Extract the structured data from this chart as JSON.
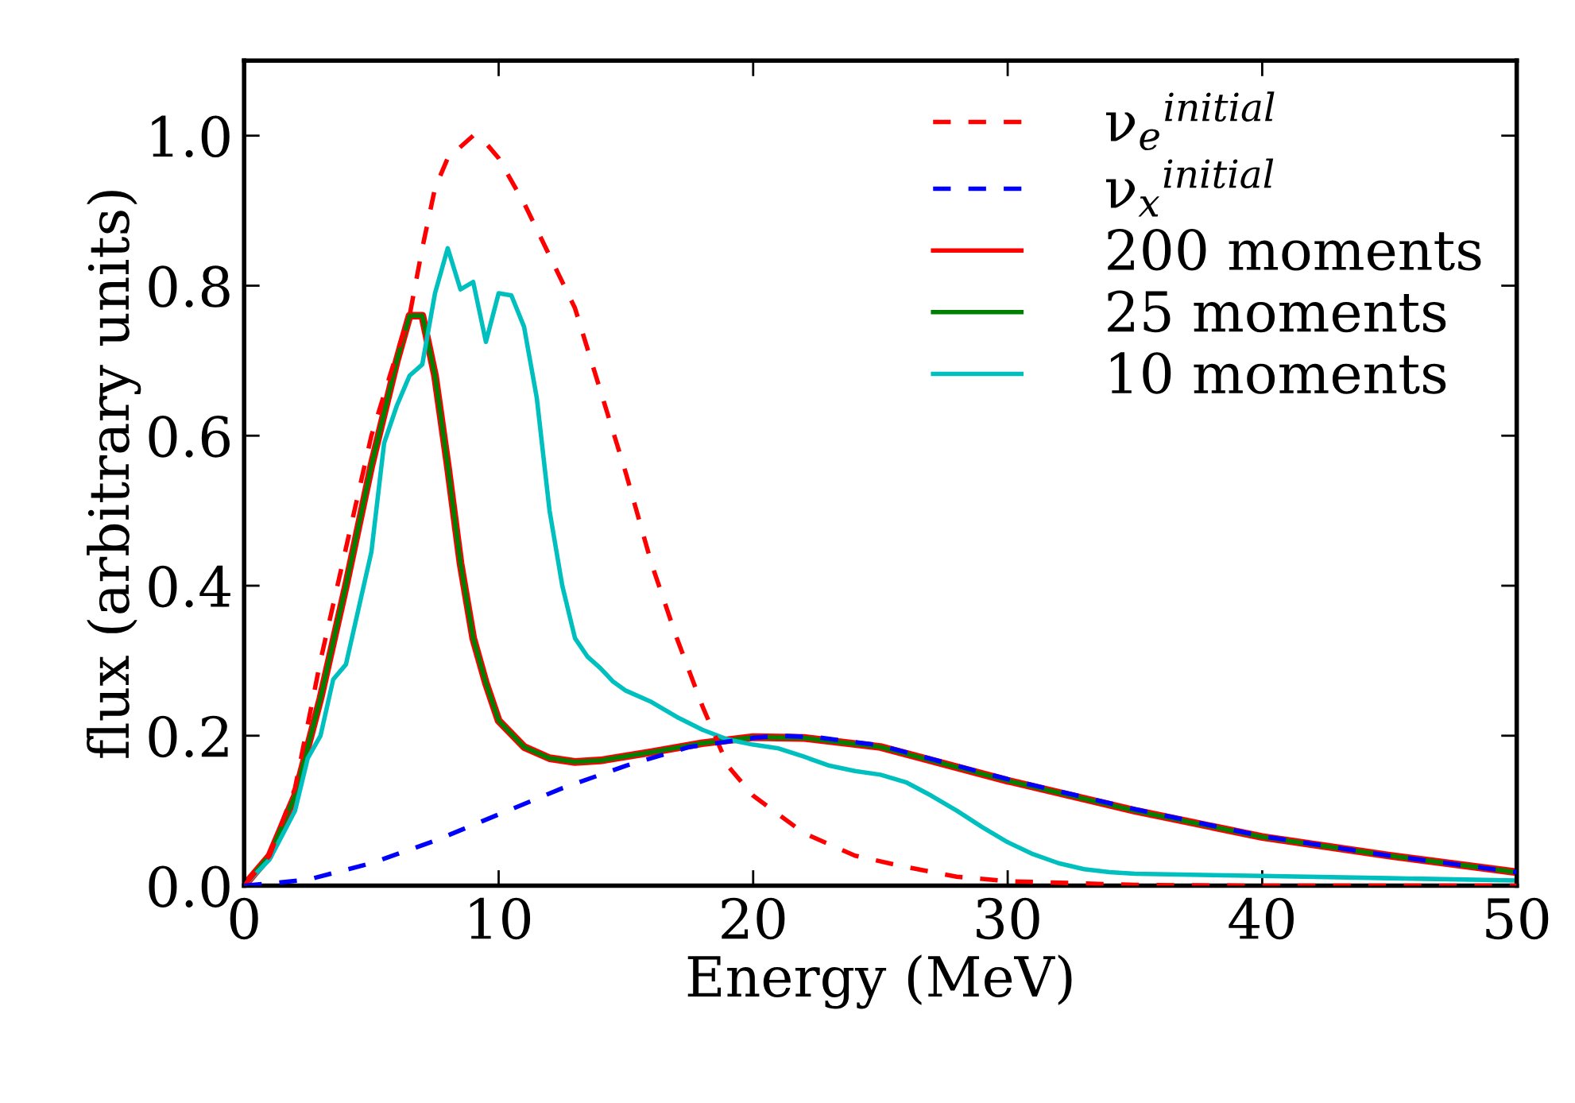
{
  "chart_data": {
    "type": "line",
    "xlabel": "Energy (MeV)",
    "ylabel": "flux (arbitrary units)",
    "xlim": [
      0,
      50
    ],
    "xticks": [
      0,
      10,
      20,
      30,
      40,
      50
    ],
    "ylim": [
      0,
      1.1
    ],
    "yticks": [
      {
        "value": 0,
        "label": "0.0"
      },
      {
        "value": 0.2,
        "label": "0.2"
      },
      {
        "value": 0.4,
        "label": "0.4"
      },
      {
        "value": 0.6,
        "label": "0.6"
      },
      {
        "value": 0.8,
        "label": "0.8"
      },
      {
        "value": 1.0,
        "label": "1.0"
      }
    ],
    "grid": false,
    "legend": "top right",
    "marker": "none",
    "series": [
      {
        "name": "ν$_{e}$$^{initial}$",
        "color": "#ff0000",
        "line_style": "dashed",
        "x": [
          0,
          1,
          2,
          3,
          4,
          5,
          6,
          6.5,
          7,
          7.5,
          8,
          9,
          9.5,
          10,
          11,
          12,
          13,
          14,
          15,
          16,
          17,
          18,
          19,
          20,
          22,
          24,
          26,
          28,
          30,
          35,
          40,
          50
        ],
        "values": [
          0,
          0.04,
          0.13,
          0.3,
          0.45,
          0.6,
          0.71,
          0.76,
          0.85,
          0.93,
          0.97,
          1.0,
          0.99,
          0.97,
          0.91,
          0.84,
          0.77,
          0.66,
          0.55,
          0.43,
          0.33,
          0.24,
          0.16,
          0.12,
          0.07,
          0.04,
          0.025,
          0.012,
          0.006,
          0.001,
          0,
          0
        ]
      },
      {
        "name": "ν$_{x}$$^{initial}$",
        "color": "#0000ff",
        "line_style": "dashed",
        "x": [
          0,
          2.5,
          5,
          7.5,
          10,
          12.5,
          15,
          17.5,
          20,
          21,
          22.5,
          25,
          30,
          35,
          40,
          45,
          50
        ],
        "values": [
          0,
          0.008,
          0.03,
          0.06,
          0.095,
          0.13,
          0.16,
          0.185,
          0.197,
          0.2,
          0.198,
          0.187,
          0.142,
          0.102,
          0.066,
          0.04,
          0.018
        ]
      },
      {
        "name": "200 moments",
        "color": "#ff0000",
        "line_style": "solid",
        "x": [
          0,
          1,
          2,
          3,
          4,
          5,
          6,
          6.5,
          7,
          7.5,
          8,
          8.5,
          9,
          9.5,
          10,
          11,
          12,
          13,
          14,
          16,
          18,
          20,
          22,
          25,
          30,
          35,
          40,
          45,
          50
        ],
        "values": [
          0,
          0.04,
          0.12,
          0.25,
          0.4,
          0.56,
          0.7,
          0.76,
          0.76,
          0.68,
          0.56,
          0.43,
          0.33,
          0.27,
          0.22,
          0.185,
          0.17,
          0.165,
          0.167,
          0.178,
          0.19,
          0.198,
          0.197,
          0.185,
          0.14,
          0.1,
          0.065,
          0.04,
          0.018
        ]
      },
      {
        "name": "25 moments",
        "color": "#008000",
        "line_style": "solid",
        "x": [
          0,
          1,
          2,
          3,
          4,
          5,
          6,
          6.5,
          7,
          7.5,
          8,
          8.5,
          9,
          9.5,
          10,
          11,
          12,
          13,
          14,
          16,
          18,
          20,
          22,
          25,
          30,
          35,
          40,
          45,
          50
        ],
        "values": [
          0,
          0.04,
          0.12,
          0.25,
          0.4,
          0.56,
          0.7,
          0.76,
          0.76,
          0.68,
          0.56,
          0.43,
          0.33,
          0.27,
          0.22,
          0.185,
          0.17,
          0.165,
          0.167,
          0.178,
          0.19,
          0.198,
          0.197,
          0.185,
          0.14,
          0.1,
          0.065,
          0.04,
          0.018
        ]
      },
      {
        "name": "10 moments",
        "color": "#00bfbf",
        "line_style": "solid",
        "x": [
          0,
          1,
          2,
          2.5,
          3,
          3.5,
          4,
          4.5,
          5,
          5.5,
          6,
          6.5,
          7,
          7.5,
          8,
          8.5,
          9,
          9.5,
          10,
          10.5,
          11,
          11.5,
          12,
          12.5,
          13,
          13.5,
          14,
          14.5,
          15,
          16,
          17,
          18,
          19,
          20,
          21,
          22,
          23,
          24,
          25,
          26,
          27,
          28,
          29,
          30,
          31,
          32,
          33,
          34,
          35,
          40,
          45,
          50
        ],
        "values": [
          0,
          0.035,
          0.1,
          0.17,
          0.2,
          0.275,
          0.295,
          0.37,
          0.445,
          0.59,
          0.64,
          0.68,
          0.695,
          0.79,
          0.85,
          0.795,
          0.805,
          0.725,
          0.79,
          0.787,
          0.745,
          0.65,
          0.5,
          0.4,
          0.33,
          0.305,
          0.29,
          0.272,
          0.26,
          0.245,
          0.225,
          0.208,
          0.195,
          0.188,
          0.183,
          0.172,
          0.16,
          0.153,
          0.148,
          0.138,
          0.12,
          0.1,
          0.078,
          0.058,
          0.042,
          0.03,
          0.022,
          0.018,
          0.016,
          0.013,
          0.01,
          0.007
        ]
      }
    ]
  }
}
